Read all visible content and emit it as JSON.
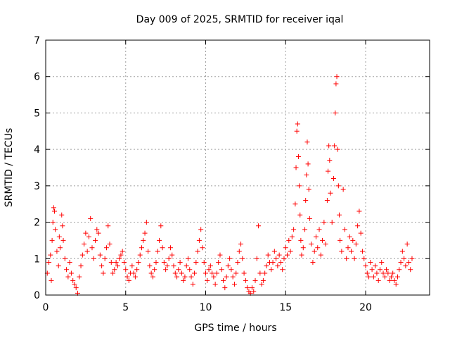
{
  "chart_data": {
    "type": "scatter",
    "title": "Day 009 of 2025, SRMTID for receiver iqal",
    "xlabel": "GPS time / hours",
    "ylabel": "SRMTID / TECUs",
    "xlim": [
      0,
      24
    ],
    "ylim": [
      0,
      7
    ],
    "x_ticks": [
      0,
      5,
      10,
      15,
      20
    ],
    "y_ticks": [
      0,
      1,
      2,
      3,
      4,
      5,
      6,
      7
    ],
    "grid": true,
    "marker": "+",
    "series": [
      {
        "name": "SRMTID",
        "color": "#ff0000",
        "points": [
          [
            0.1,
            0.6
          ],
          [
            0.2,
            0.9
          ],
          [
            0.3,
            1.1
          ],
          [
            0.35,
            0.4
          ],
          [
            0.4,
            1.5
          ],
          [
            0.45,
            2.0
          ],
          [
            0.5,
            2.4
          ],
          [
            0.55,
            2.3
          ],
          [
            0.6,
            1.8
          ],
          [
            0.7,
            1.2
          ],
          [
            0.8,
            0.8
          ],
          [
            0.85,
            1.6
          ],
          [
            0.9,
            1.3
          ],
          [
            1.0,
            2.2
          ],
          [
            1.05,
            1.9
          ],
          [
            1.1,
            1.5
          ],
          [
            1.2,
            1.0
          ],
          [
            1.3,
            0.7
          ],
          [
            1.4,
            0.5
          ],
          [
            1.5,
            0.9
          ],
          [
            1.6,
            0.6
          ],
          [
            1.7,
            0.4
          ],
          [
            1.8,
            0.3
          ],
          [
            1.9,
            0.2
          ],
          [
            2.0,
            0.05
          ],
          [
            2.1,
            0.5
          ],
          [
            2.2,
            0.8
          ],
          [
            2.3,
            1.1
          ],
          [
            2.4,
            1.4
          ],
          [
            2.5,
            1.7
          ],
          [
            2.6,
            1.2
          ],
          [
            2.7,
            1.6
          ],
          [
            2.8,
            2.1
          ],
          [
            2.9,
            1.3
          ],
          [
            3.0,
            1.0
          ],
          [
            3.1,
            1.5
          ],
          [
            3.2,
            1.8
          ],
          [
            3.3,
            1.7
          ],
          [
            3.4,
            1.1
          ],
          [
            3.5,
            0.8
          ],
          [
            3.6,
            0.6
          ],
          [
            3.7,
            1.0
          ],
          [
            3.8,
            1.3
          ],
          [
            3.9,
            1.9
          ],
          [
            4.0,
            1.4
          ],
          [
            4.1,
            0.9
          ],
          [
            4.2,
            0.6
          ],
          [
            4.3,
            0.7
          ],
          [
            4.4,
            0.9
          ],
          [
            4.5,
            0.8
          ],
          [
            4.6,
            1.0
          ],
          [
            4.7,
            1.1
          ],
          [
            4.8,
            1.2
          ],
          [
            4.9,
            0.9
          ],
          [
            5.0,
            0.7
          ],
          [
            5.1,
            0.5
          ],
          [
            5.2,
            0.4
          ],
          [
            5.3,
            0.6
          ],
          [
            5.4,
            0.8
          ],
          [
            5.5,
            0.6
          ],
          [
            5.6,
            0.5
          ],
          [
            5.7,
            0.7
          ],
          [
            5.8,
            0.9
          ],
          [
            5.9,
            1.1
          ],
          [
            6.0,
            1.3
          ],
          [
            6.1,
            1.5
          ],
          [
            6.2,
            1.7
          ],
          [
            6.3,
            2.0
          ],
          [
            6.4,
            1.2
          ],
          [
            6.5,
            0.8
          ],
          [
            6.6,
            0.6
          ],
          [
            6.7,
            0.5
          ],
          [
            6.8,
            0.7
          ],
          [
            6.9,
            0.9
          ],
          [
            7.0,
            1.2
          ],
          [
            7.1,
            1.5
          ],
          [
            7.2,
            1.9
          ],
          [
            7.3,
            1.3
          ],
          [
            7.4,
            0.9
          ],
          [
            7.5,
            0.7
          ],
          [
            7.6,
            0.8
          ],
          [
            7.7,
            1.0
          ],
          [
            7.8,
            1.3
          ],
          [
            7.9,
            1.1
          ],
          [
            8.0,
            0.8
          ],
          [
            8.1,
            0.6
          ],
          [
            8.2,
            0.5
          ],
          [
            8.3,
            0.7
          ],
          [
            8.4,
            0.9
          ],
          [
            8.5,
            0.6
          ],
          [
            8.6,
            0.4
          ],
          [
            8.7,
            0.5
          ],
          [
            8.8,
            0.8
          ],
          [
            8.9,
            1.0
          ],
          [
            9.0,
            0.7
          ],
          [
            9.1,
            0.5
          ],
          [
            9.2,
            0.3
          ],
          [
            9.3,
            0.6
          ],
          [
            9.4,
            0.9
          ],
          [
            9.5,
            1.2
          ],
          [
            9.6,
            1.5
          ],
          [
            9.7,
            1.8
          ],
          [
            9.8,
            1.3
          ],
          [
            9.9,
            0.9
          ],
          [
            10.0,
            0.6
          ],
          [
            10.1,
            0.4
          ],
          [
            10.2,
            0.7
          ],
          [
            10.3,
            0.8
          ],
          [
            10.4,
            0.6
          ],
          [
            10.5,
            0.5
          ],
          [
            10.6,
            0.3
          ],
          [
            10.7,
            0.6
          ],
          [
            10.8,
            0.9
          ],
          [
            10.9,
            1.1
          ],
          [
            11.0,
            0.7
          ],
          [
            11.1,
            0.4
          ],
          [
            11.2,
            0.2
          ],
          [
            11.3,
            0.5
          ],
          [
            11.4,
            0.8
          ],
          [
            11.5,
            1.0
          ],
          [
            11.6,
            0.7
          ],
          [
            11.7,
            0.5
          ],
          [
            11.8,
            0.3
          ],
          [
            11.9,
            0.6
          ],
          [
            12.0,
            0.9
          ],
          [
            12.1,
            1.2
          ],
          [
            12.2,
            1.4
          ],
          [
            12.3,
            1.0
          ],
          [
            12.4,
            0.6
          ],
          [
            12.5,
            0.4
          ],
          [
            12.6,
            0.2
          ],
          [
            12.7,
            0.1
          ],
          [
            12.8,
            0.05
          ],
          [
            12.9,
            0.2
          ],
          [
            13.0,
            0.1
          ],
          [
            13.1,
            0.4
          ],
          [
            13.2,
            1.0
          ],
          [
            13.3,
            1.9
          ],
          [
            13.4,
            0.6
          ],
          [
            13.5,
            0.3
          ],
          [
            13.6,
            0.4
          ],
          [
            13.7,
            0.6
          ],
          [
            13.8,
            0.8
          ],
          [
            13.9,
            1.1
          ],
          [
            14.0,
            0.9
          ],
          [
            14.1,
            0.7
          ],
          [
            14.2,
            0.9
          ],
          [
            14.3,
            1.2
          ],
          [
            14.4,
            1.0
          ],
          [
            14.5,
            0.8
          ],
          [
            14.6,
            1.1
          ],
          [
            14.7,
            0.9
          ],
          [
            14.8,
            0.7
          ],
          [
            14.9,
            1.0
          ],
          [
            15.0,
            1.3
          ],
          [
            15.1,
            1.1
          ],
          [
            15.2,
            1.5
          ],
          [
            15.3,
            1.2
          ],
          [
            15.4,
            1.6
          ],
          [
            15.5,
            1.8
          ],
          [
            15.6,
            2.5
          ],
          [
            15.65,
            3.5
          ],
          [
            15.7,
            4.5
          ],
          [
            15.75,
            4.7
          ],
          [
            15.8,
            3.8
          ],
          [
            15.85,
            3.0
          ],
          [
            15.9,
            2.2
          ],
          [
            15.95,
            1.5
          ],
          [
            16.0,
            1.1
          ],
          [
            16.1,
            1.3
          ],
          [
            16.2,
            1.8
          ],
          [
            16.25,
            2.6
          ],
          [
            16.3,
            3.3
          ],
          [
            16.35,
            4.2
          ],
          [
            16.4,
            3.6
          ],
          [
            16.45,
            2.9
          ],
          [
            16.5,
            2.1
          ],
          [
            16.6,
            1.4
          ],
          [
            16.7,
            0.9
          ],
          [
            16.8,
            1.2
          ],
          [
            16.9,
            1.6
          ],
          [
            17.0,
            1.3
          ],
          [
            17.1,
            1.8
          ],
          [
            17.2,
            1.1
          ],
          [
            17.3,
            1.5
          ],
          [
            17.4,
            2.0
          ],
          [
            17.5,
            1.4
          ],
          [
            17.6,
            2.6
          ],
          [
            17.65,
            3.4
          ],
          [
            17.7,
            4.1
          ],
          [
            17.75,
            3.7
          ],
          [
            17.8,
            2.8
          ],
          [
            17.9,
            2.0
          ],
          [
            18.0,
            3.2
          ],
          [
            18.05,
            4.1
          ],
          [
            18.1,
            5.0
          ],
          [
            18.15,
            5.8
          ],
          [
            18.2,
            6.0
          ],
          [
            18.25,
            4.0
          ],
          [
            18.3,
            3.0
          ],
          [
            18.35,
            2.2
          ],
          [
            18.4,
            1.5
          ],
          [
            18.5,
            1.2
          ],
          [
            18.6,
            2.9
          ],
          [
            18.7,
            1.8
          ],
          [
            18.8,
            1.0
          ],
          [
            18.9,
            1.3
          ],
          [
            19.0,
            1.6
          ],
          [
            19.1,
            1.2
          ],
          [
            19.2,
            1.5
          ],
          [
            19.3,
            1.0
          ],
          [
            19.4,
            1.4
          ],
          [
            19.5,
            1.9
          ],
          [
            19.6,
            2.3
          ],
          [
            19.7,
            1.7
          ],
          [
            19.8,
            1.2
          ],
          [
            19.9,
            1.0
          ],
          [
            20.0,
            0.8
          ],
          [
            20.1,
            0.6
          ],
          [
            20.2,
            0.5
          ],
          [
            20.3,
            0.9
          ],
          [
            20.4,
            0.7
          ],
          [
            20.5,
            0.5
          ],
          [
            20.6,
            0.8
          ],
          [
            20.7,
            0.6
          ],
          [
            20.8,
            0.4
          ],
          [
            20.9,
            0.7
          ],
          [
            21.0,
            0.9
          ],
          [
            21.1,
            0.6
          ],
          [
            21.2,
            0.5
          ],
          [
            21.3,
            0.7
          ],
          [
            21.4,
            0.6
          ],
          [
            21.5,
            0.4
          ],
          [
            21.6,
            0.5
          ],
          [
            21.7,
            0.6
          ],
          [
            21.8,
            0.4
          ],
          [
            21.9,
            0.3
          ],
          [
            22.0,
            0.5
          ],
          [
            22.1,
            0.7
          ],
          [
            22.2,
            0.9
          ],
          [
            22.3,
            1.2
          ],
          [
            22.4,
            1.0
          ],
          [
            22.5,
            0.8
          ],
          [
            22.6,
            1.4
          ],
          [
            22.7,
            0.9
          ],
          [
            22.8,
            0.7
          ],
          [
            22.9,
            1.0
          ]
        ]
      }
    ]
  }
}
